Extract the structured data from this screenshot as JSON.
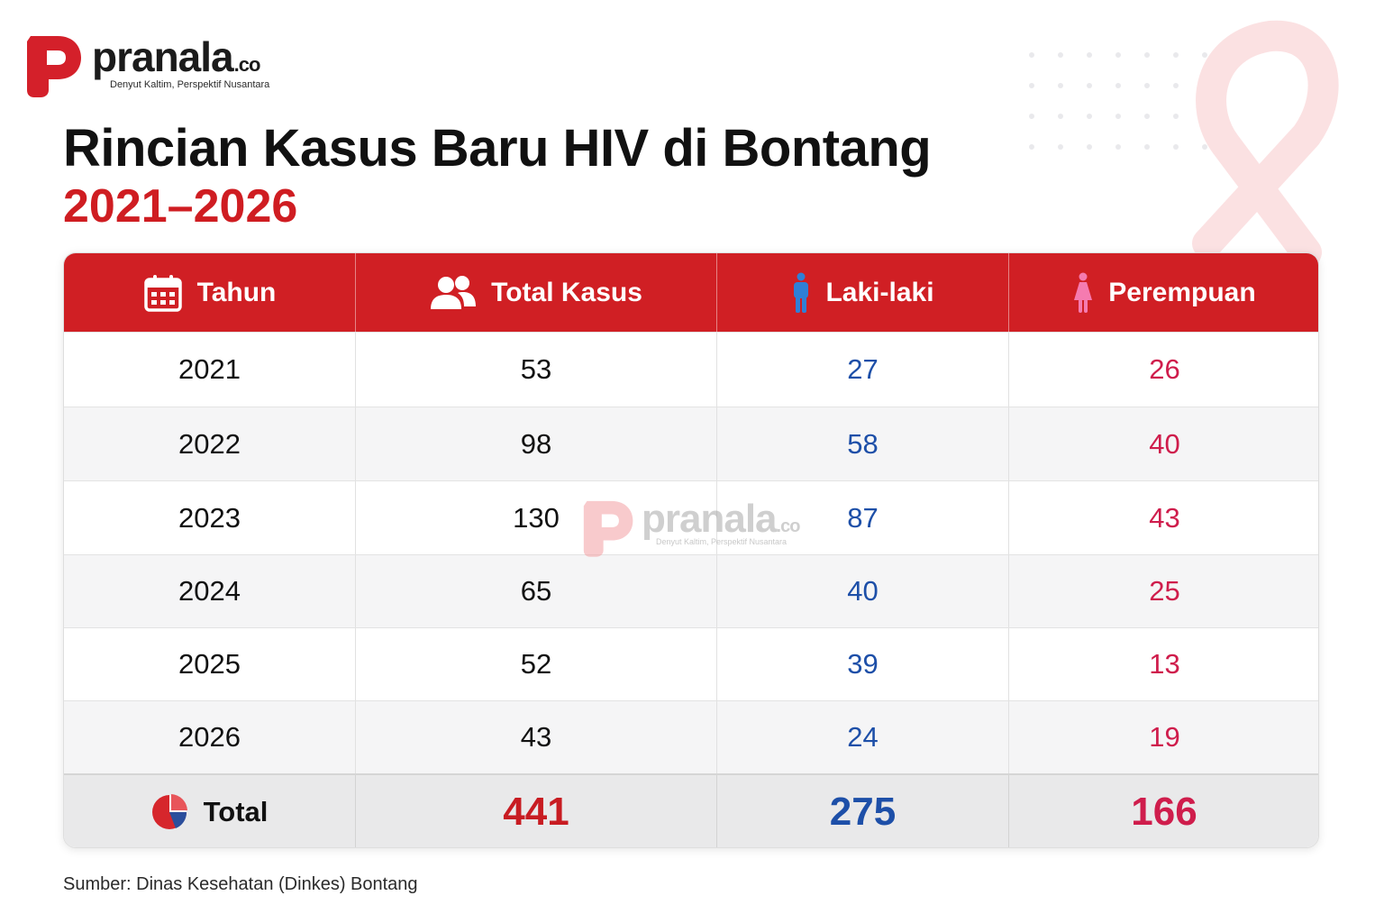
{
  "brand": {
    "name": "pranala",
    "suffix": ".co",
    "tagline": "Denyut Kaltim, Perspektif Nusantara",
    "accent_color": "#d01f24"
  },
  "title": "Rincian Kasus Baru HIV di Bontang",
  "subtitle": "2021–2026",
  "table": {
    "headers": [
      {
        "label": "Tahun",
        "icon": "calendar-icon"
      },
      {
        "label": "Total Kasus",
        "icon": "people-icon"
      },
      {
        "label": "Laki-laki",
        "icon": "male-icon"
      },
      {
        "label": "Perempuan",
        "icon": "female-icon"
      }
    ],
    "rows": [
      {
        "year": "2021",
        "total": "53",
        "male": "27",
        "female": "26"
      },
      {
        "year": "2022",
        "total": "98",
        "male": "58",
        "female": "40"
      },
      {
        "year": "2023",
        "total": "130",
        "male": "87",
        "female": "43"
      },
      {
        "year": "2024",
        "total": "65",
        "male": "40",
        "female": "25"
      },
      {
        "year": "2025",
        "total": "52",
        "male": "39",
        "female": "13"
      },
      {
        "year": "2026",
        "total": "43",
        "male": "24",
        "female": "19"
      }
    ],
    "total": {
      "label": "Total",
      "icon": "pie-chart-icon",
      "total": "441",
      "male": "275",
      "female": "166"
    }
  },
  "colors": {
    "male": "#1d4fa8",
    "female": "#cf1d4c",
    "total": "#c81c22"
  },
  "source": "Sumber: Dinas Kesehatan (Dinkes) Bontang"
}
